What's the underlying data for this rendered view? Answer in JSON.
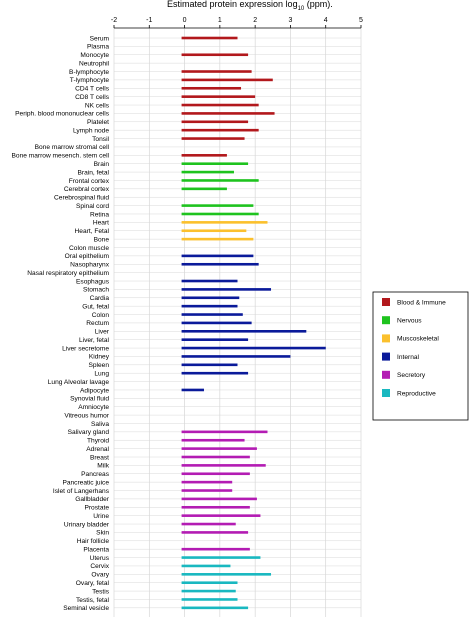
{
  "chart_data": {
    "type": "bar",
    "orientation": "horizontal",
    "title": "Estimated protein expression log",
    "title_sub": "10",
    "title_tail": " (ppm).",
    "xlim": [
      -2,
      5
    ],
    "ticks": [
      "-2",
      "-1",
      "0",
      "1",
      "2",
      "3",
      "4",
      "5"
    ],
    "grid": true,
    "legend_position": "right",
    "colors": {
      "Blood & Immune": "#b2181c",
      "Nervous": "#1ec31e",
      "Muscoskeletal": "#fbc02d",
      "Internal": "#0a1a9a",
      "Secretory": "#b31cb3",
      "Reproductive": "#19b8c0"
    },
    "legend": [
      "Blood & Immune",
      "Nervous",
      "Muscoskeletal",
      "Internal",
      "Secretory",
      "Reproductive"
    ],
    "rows": [
      {
        "label": "Serum",
        "value": 1.5,
        "group": "Blood & Immune"
      },
      {
        "label": "Plasma",
        "value": null,
        "group": "Blood & Immune"
      },
      {
        "label": "Monocyte",
        "value": 1.8,
        "group": "Blood & Immune"
      },
      {
        "label": "Neutrophil",
        "value": null,
        "group": "Blood & Immune"
      },
      {
        "label": "B-lymphocyte",
        "value": 1.9,
        "group": "Blood & Immune"
      },
      {
        "label": "T-lymphocyte",
        "value": 2.5,
        "group": "Blood & Immune"
      },
      {
        "label": "CD4 T cells",
        "value": 1.6,
        "group": "Blood & Immune"
      },
      {
        "label": "CD8 T cells",
        "value": 2.0,
        "group": "Blood & Immune"
      },
      {
        "label": "NK cells",
        "value": 2.1,
        "group": "Blood & Immune"
      },
      {
        "label": "Periph. blood mononuclear cells",
        "value": 2.55,
        "group": "Blood & Immune"
      },
      {
        "label": "Platelet",
        "value": 1.8,
        "group": "Blood & Immune"
      },
      {
        "label": "Lymph node",
        "value": 2.1,
        "group": "Blood & Immune"
      },
      {
        "label": "Tonsil",
        "value": 1.7,
        "group": "Blood & Immune"
      },
      {
        "label": "Bone marrow stromal cell",
        "value": null,
        "group": "Blood & Immune"
      },
      {
        "label": "Bone marrow mesench. stem cell",
        "value": 1.2,
        "group": "Blood & Immune"
      },
      {
        "label": "Brain",
        "value": 1.8,
        "group": "Nervous"
      },
      {
        "label": "Brain, fetal",
        "value": 1.4,
        "group": "Nervous"
      },
      {
        "label": "Frontal cortex",
        "value": 2.1,
        "group": "Nervous"
      },
      {
        "label": "Cerebral cortex",
        "value": 1.2,
        "group": "Nervous"
      },
      {
        "label": "Cerebrospinal fluid",
        "value": null,
        "group": "Nervous"
      },
      {
        "label": "Spinal cord",
        "value": 1.95,
        "group": "Nervous"
      },
      {
        "label": "Retina",
        "value": 2.1,
        "group": "Nervous"
      },
      {
        "label": "Heart",
        "value": 2.35,
        "group": "Muscoskeletal"
      },
      {
        "label": "Heart, Fetal",
        "value": 1.75,
        "group": "Muscoskeletal"
      },
      {
        "label": "Bone",
        "value": 1.95,
        "group": "Muscoskeletal"
      },
      {
        "label": "Colon muscle",
        "value": null,
        "group": "Muscoskeletal"
      },
      {
        "label": "Oral epithelium",
        "value": 1.95,
        "group": "Internal"
      },
      {
        "label": "Nasopharynx",
        "value": 2.1,
        "group": "Internal"
      },
      {
        "label": "Nasal respiratory epithelium",
        "value": null,
        "group": "Internal"
      },
      {
        "label": "Esophagus",
        "value": 1.5,
        "group": "Internal"
      },
      {
        "label": "Stomach",
        "value": 2.45,
        "group": "Internal"
      },
      {
        "label": "Cardia",
        "value": 1.55,
        "group": "Internal"
      },
      {
        "label": "Gut, fetal",
        "value": 1.5,
        "group": "Internal"
      },
      {
        "label": "Colon",
        "value": 1.65,
        "group": "Internal"
      },
      {
        "label": "Rectum",
        "value": 1.9,
        "group": "Internal"
      },
      {
        "label": "Liver",
        "value": 3.45,
        "group": "Internal"
      },
      {
        "label": "Liver, fetal",
        "value": 1.8,
        "group": "Internal"
      },
      {
        "label": "Liver secretome",
        "value": 4.0,
        "group": "Internal"
      },
      {
        "label": "Kidney",
        "value": 3.0,
        "group": "Internal"
      },
      {
        "label": "Spleen",
        "value": 1.5,
        "group": "Internal"
      },
      {
        "label": "Lung",
        "value": 1.8,
        "group": "Internal"
      },
      {
        "label": "Lung Alveolar lavage",
        "value": null,
        "group": "Internal"
      },
      {
        "label": "Adipocyte",
        "value": 0.55,
        "group": "Internal"
      },
      {
        "label": "Synovial fluid",
        "value": null,
        "group": "Secretory"
      },
      {
        "label": "Amniocyte",
        "value": null,
        "group": "Secretory"
      },
      {
        "label": "Vitreous humor",
        "value": null,
        "group": "Secretory"
      },
      {
        "label": "Saliva",
        "value": null,
        "group": "Secretory"
      },
      {
        "label": "Salivary gland",
        "value": 2.35,
        "group": "Secretory"
      },
      {
        "label": "Thyroid",
        "value": 1.7,
        "group": "Secretory"
      },
      {
        "label": "Adrenal",
        "value": 2.05,
        "group": "Secretory"
      },
      {
        "label": "Breast",
        "value": 1.85,
        "group": "Secretory"
      },
      {
        "label": "Milk",
        "value": 2.3,
        "group": "Secretory"
      },
      {
        "label": "Pancreas",
        "value": 1.85,
        "group": "Secretory"
      },
      {
        "label": "Pancreatic juice",
        "value": 1.35,
        "group": "Secretory"
      },
      {
        "label": "Islet of Langerhans",
        "value": 1.35,
        "group": "Secretory"
      },
      {
        "label": "Gallbladder",
        "value": 2.05,
        "group": "Secretory"
      },
      {
        "label": "Prostate",
        "value": 1.85,
        "group": "Secretory"
      },
      {
        "label": "Urine",
        "value": 2.15,
        "group": "Secretory"
      },
      {
        "label": "Urinary bladder",
        "value": 1.45,
        "group": "Secretory"
      },
      {
        "label": "Skin",
        "value": 1.8,
        "group": "Secretory"
      },
      {
        "label": "Hair follicle",
        "value": null,
        "group": "Secretory"
      },
      {
        "label": "Placenta",
        "value": 1.85,
        "group": "Secretory"
      },
      {
        "label": "Uterus",
        "value": 2.15,
        "group": "Reproductive"
      },
      {
        "label": "Cervix",
        "value": 1.3,
        "group": "Reproductive"
      },
      {
        "label": "Ovary",
        "value": 2.45,
        "group": "Reproductive"
      },
      {
        "label": "Ovary, fetal",
        "value": 1.5,
        "group": "Reproductive"
      },
      {
        "label": "Testis",
        "value": 1.45,
        "group": "Reproductive"
      },
      {
        "label": "Testis, fetal",
        "value": 1.5,
        "group": "Reproductive"
      },
      {
        "label": "Seminal vesicle",
        "value": 1.8,
        "group": "Reproductive"
      }
    ]
  }
}
